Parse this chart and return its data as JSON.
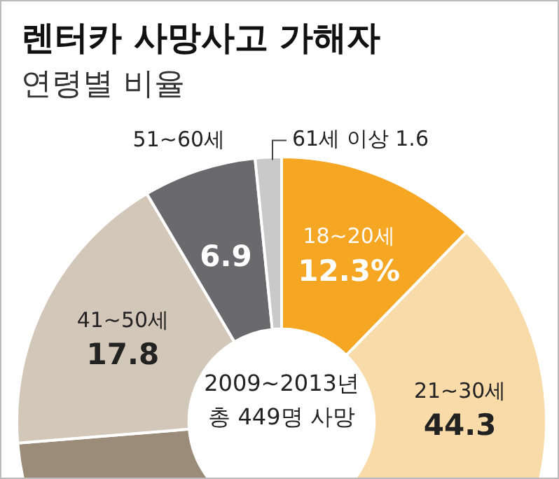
{
  "chart_data": {
    "type": "donut",
    "title": "렌터카 사망사고 가해자",
    "subtitle": "연령별 비율",
    "categories": [
      "18~20세",
      "21~30세",
      null,
      "41~50세",
      "51~60세",
      "61세 이상"
    ],
    "values": [
      12.3,
      44.3,
      17.1,
      17.8,
      6.9,
      1.6
    ],
    "value_labels": [
      "12.3%",
      "44.3",
      null,
      "17.8",
      "6.9",
      "1.6"
    ],
    "colors": [
      "#f5a623",
      "#f8dba8",
      "#9b8b79",
      "#d3c7b9",
      "#6a6a6c",
      "#c9c9c9"
    ],
    "annotations": [
      "2009~2013년",
      "총 449명 사망"
    ],
    "legend": false
  }
}
